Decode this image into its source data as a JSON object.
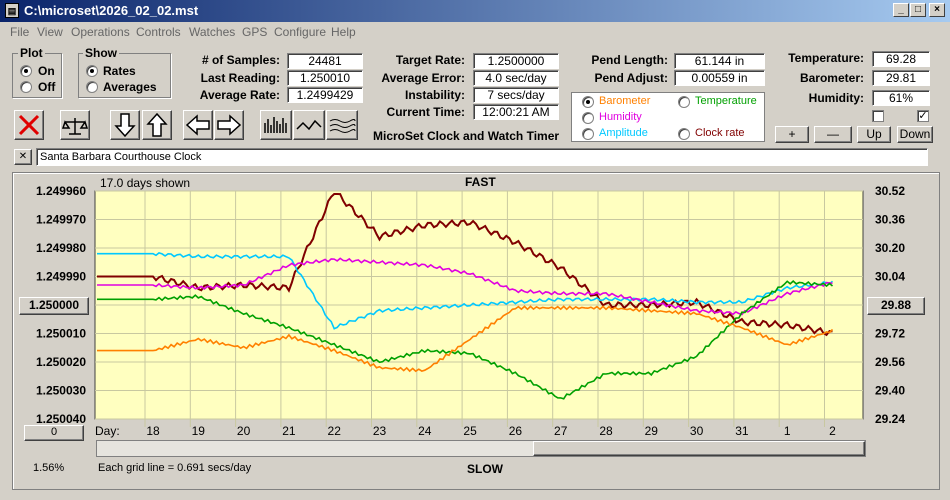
{
  "window": {
    "title": "C:\\microset\\2026_02_02.mst"
  },
  "menu": [
    "File",
    "View",
    "Operations",
    "Controls",
    "Watches",
    "GPS",
    "Configure",
    "Help"
  ],
  "plot": {
    "label": "Plot",
    "options": [
      "On",
      "Off"
    ],
    "selected": "On"
  },
  "show": {
    "label": "Show",
    "options": [
      "Rates",
      "Averages"
    ],
    "selected": "Rates"
  },
  "stats1": [
    {
      "label": "# of Samples:",
      "value": "24481"
    },
    {
      "label": "Last Reading:",
      "value": "1.250010"
    },
    {
      "label": "Average Rate:",
      "value": "1.2499429"
    }
  ],
  "stats2": [
    {
      "label": "Target Rate:",
      "value": "1.2500000"
    },
    {
      "label": "Average Error:",
      "value": "4.0 sec/day"
    },
    {
      "label": "Instability:",
      "value": "7 secs/day"
    },
    {
      "label": "Current Time:",
      "value": "12:00:21 AM"
    }
  ],
  "app_name": "MicroSet Clock and Watch Timer",
  "pend": [
    {
      "label": "Pend Length:",
      "value": "61.144 in"
    },
    {
      "label": "Pend Adjust:",
      "value": "0.00559 in"
    }
  ],
  "env": [
    {
      "label": "Temperature:",
      "value": "69.28"
    },
    {
      "label": "Barometer:",
      "value": "29.81"
    },
    {
      "label": "Humidity:",
      "value": "61%"
    }
  ],
  "overlay": {
    "items": [
      {
        "label": "Barometer",
        "color": "#ff8000",
        "checked": true
      },
      {
        "label": "Temperature",
        "color": "#00a000",
        "checked": false
      },
      {
        "label": "Humidity",
        "color": "#e000e0",
        "checked": false
      },
      {
        "label": "Amplitude",
        "color": "#00c8ff",
        "checked": false
      },
      {
        "label": "Clock rate",
        "color": "#800000",
        "checked": false
      }
    ]
  },
  "adjust_buttons": [
    "+",
    "—",
    "Up",
    "Down"
  ],
  "checkbox_right": "✓",
  "clock_name": "Santa Barbara Courthouse Clock",
  "close_x": "✕",
  "chart_info": {
    "days_shown": "17.0 days shown",
    "fast": "FAST",
    "slow": "SLOW",
    "grid_note": "Each grid line = 0.691 secs/day",
    "percent": "1.56%",
    "center_left": "1.250000",
    "center_right": "29.88",
    "bottom_left_btn": "0",
    "day_label": "Day:"
  },
  "chart_data": {
    "type": "line",
    "x": [
      18,
      19,
      20,
      21,
      22,
      23,
      24,
      25,
      26,
      27,
      28,
      29,
      30,
      31,
      1,
      2
    ],
    "x_tick_labels": [
      "18",
      "19",
      "20",
      "21",
      "22",
      "23",
      "24",
      "25",
      "26",
      "27",
      "28",
      "29",
      "30",
      "31",
      "1",
      "2"
    ],
    "y_left_ticks": [
      "1.249960",
      "1.249970",
      "1.249980",
      "1.249990",
      "1.250000",
      "1.250010",
      "1.250020",
      "1.250030",
      "1.250040"
    ],
    "y_right_ticks": [
      "30.52",
      "30.36",
      "30.20",
      "30.04",
      "29.88",
      "29.72",
      "29.56",
      "29.40",
      "29.24"
    ],
    "ylim_left": [
      1.24996,
      1.25004
    ],
    "ylim_right": [
      29.24,
      30.52
    ],
    "grid": true,
    "series": [
      {
        "name": "Clock rate",
        "color": "#800000",
        "values": [
          1.24999,
          1.249994,
          1.249993,
          1.249994,
          1.24996,
          1.249976,
          1.249972,
          1.249971,
          1.249978,
          1.249987,
          1.25,
          1.25,
          1.249999,
          1.250006,
          1.250007,
          1.25001
        ]
      },
      {
        "name": "Amplitude",
        "color": "#00c8ff",
        "values": [
          1.249982,
          1.249983,
          1.249983,
          1.249983,
          1.250008,
          1.250002,
          1.250001,
          1.25,
          1.249999,
          1.249998,
          1.249998,
          1.249998,
          1.249999,
          1.249999,
          1.249994,
          1.249992
        ]
      },
      {
        "name": "Humidity",
        "color": "#e000e0",
        "values": [
          1.249993,
          1.249994,
          1.249993,
          1.249986,
          1.249984,
          1.249985,
          1.249986,
          1.249989,
          1.249995,
          1.249996,
          1.249996,
          1.249999,
          1.250002,
          1.250003,
          1.249996,
          1.249992
        ]
      },
      {
        "name": "Temperature",
        "color": "#00a000",
        "values": [
          1.249998,
          1.249997,
          1.250003,
          1.250008,
          1.250014,
          1.25002,
          1.250016,
          1.250017,
          1.250024,
          1.250033,
          1.250024,
          1.250024,
          1.250018,
          1.250003,
          1.249992,
          1.249993
        ]
      },
      {
        "name": "Barometer",
        "color": "#ff8000",
        "values": [
          1.250016,
          1.250012,
          1.250015,
          1.250011,
          1.250016,
          1.250022,
          1.250023,
          1.250012,
          1.250001,
          1.250001,
          1.250001,
          1.250002,
          1.250003,
          1.250008,
          1.250014,
          1.250009
        ]
      }
    ]
  }
}
